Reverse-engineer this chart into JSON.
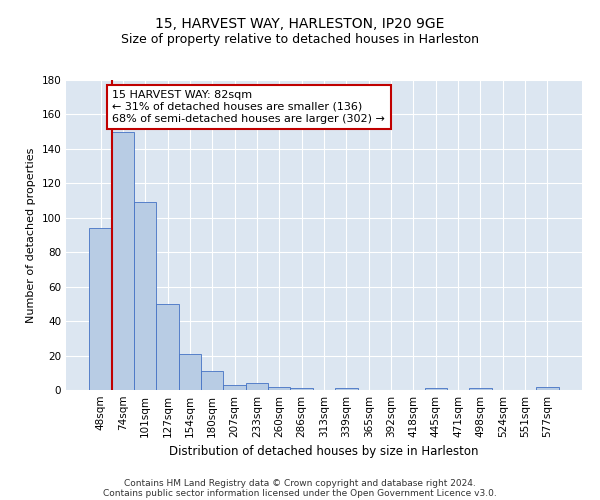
{
  "title1": "15, HARVEST WAY, HARLESTON, IP20 9GE",
  "title2": "Size of property relative to detached houses in Harleston",
  "xlabel": "Distribution of detached houses by size in Harleston",
  "ylabel": "Number of detached properties",
  "categories": [
    "48sqm",
    "74sqm",
    "101sqm",
    "127sqm",
    "154sqm",
    "180sqm",
    "207sqm",
    "233sqm",
    "260sqm",
    "286sqm",
    "313sqm",
    "339sqm",
    "365sqm",
    "392sqm",
    "418sqm",
    "445sqm",
    "471sqm",
    "498sqm",
    "524sqm",
    "551sqm",
    "577sqm"
  ],
  "values": [
    94,
    150,
    109,
    50,
    21,
    11,
    3,
    4,
    2,
    1,
    0,
    1,
    0,
    0,
    0,
    1,
    0,
    1,
    0,
    0,
    2
  ],
  "bar_color": "#b8cce4",
  "bar_edgecolor": "#4472c4",
  "vline_x": 0.5,
  "vline_color": "#c00000",
  "annotation_text": "15 HARVEST WAY: 82sqm\n← 31% of detached houses are smaller (136)\n68% of semi-detached houses are larger (302) →",
  "annotation_box_color": "#ffffff",
  "annotation_box_edgecolor": "#c00000",
  "ylim": [
    0,
    180
  ],
  "yticks": [
    0,
    20,
    40,
    60,
    80,
    100,
    120,
    140,
    160,
    180
  ],
  "background_color": "#dce6f1",
  "footer_line1": "Contains HM Land Registry data © Crown copyright and database right 2024.",
  "footer_line2": "Contains public sector information licensed under the Open Government Licence v3.0.",
  "title1_fontsize": 10,
  "title2_fontsize": 9,
  "xlabel_fontsize": 8.5,
  "ylabel_fontsize": 8,
  "tick_fontsize": 7.5,
  "annotation_fontsize": 8,
  "footer_fontsize": 6.5
}
